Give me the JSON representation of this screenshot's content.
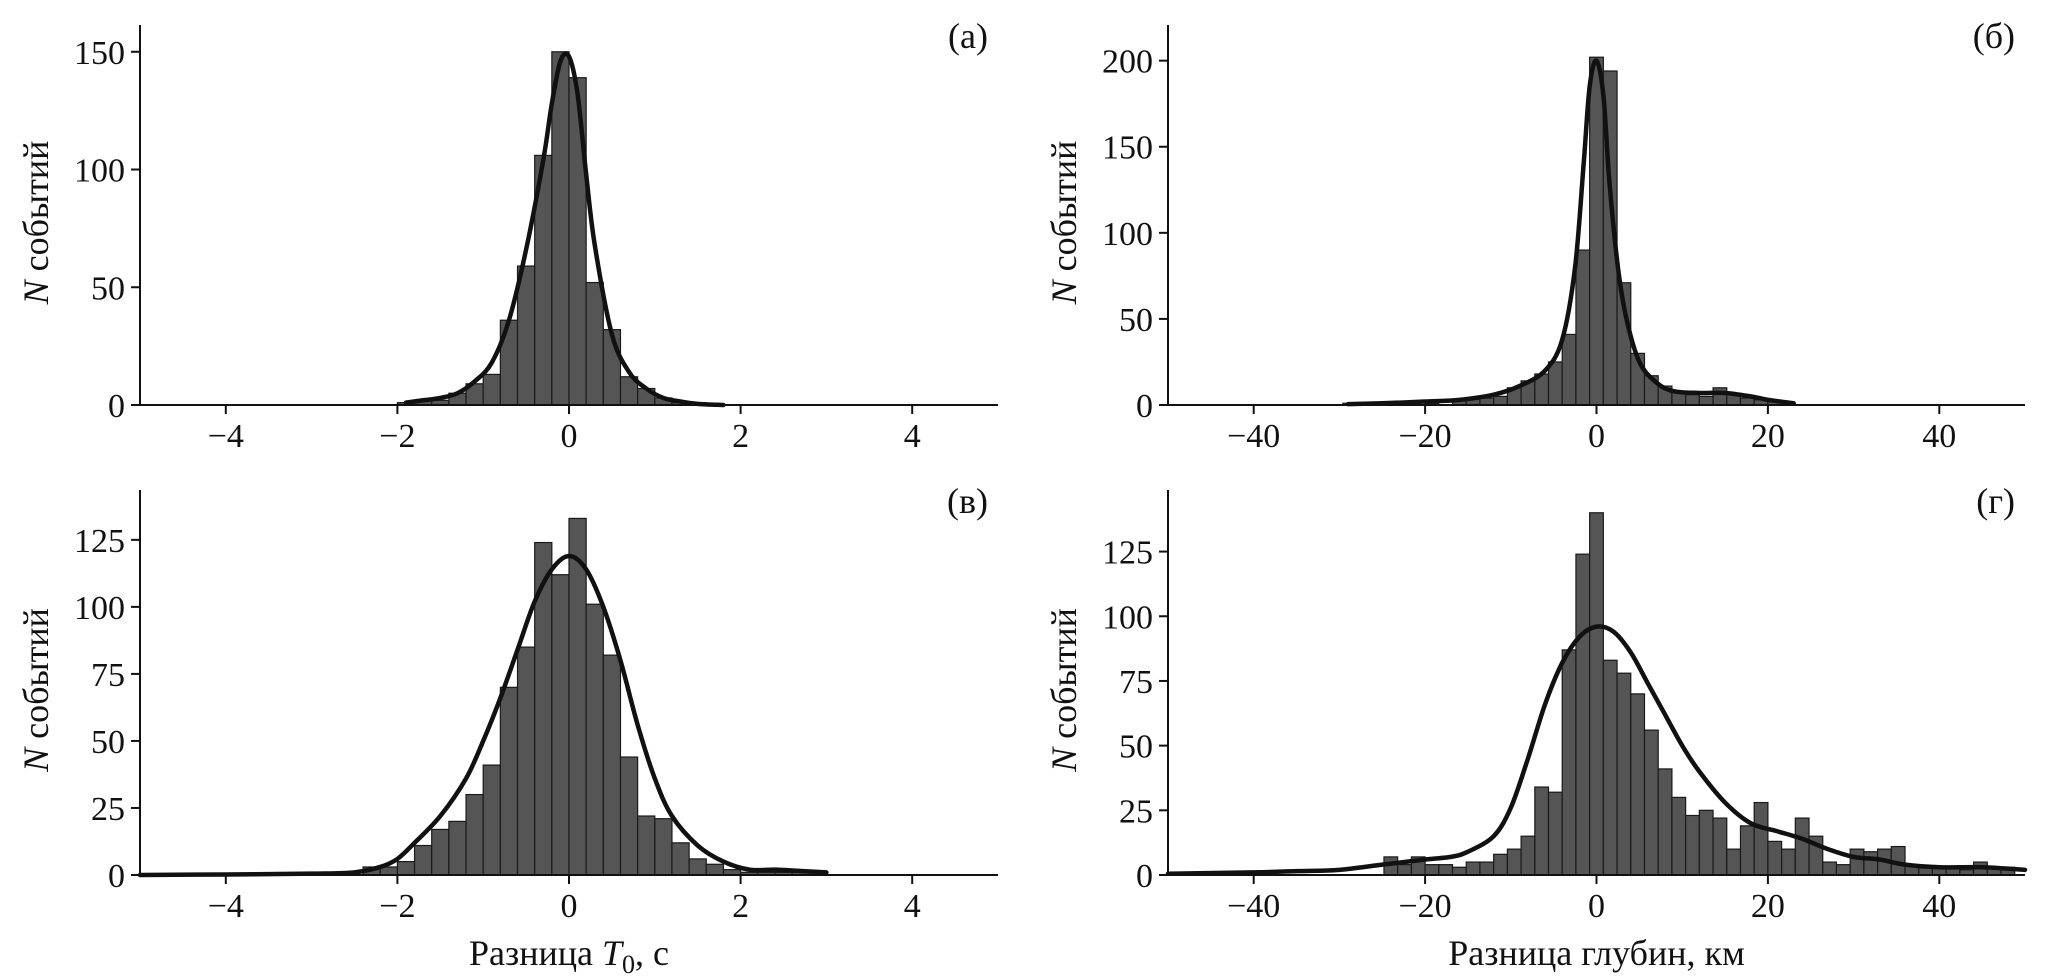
{
  "chart_data": [
    {
      "type": "bar",
      "panel_label": "(а)",
      "xlabel": "",
      "ylabel_prefix": "N",
      "ylabel": "событий",
      "xlim": [
        -5,
        5
      ],
      "ylim": [
        0,
        155
      ],
      "xticks": [
        -4,
        -2,
        0,
        2,
        4
      ],
      "xtick_labels": [
        "−4",
        "−2",
        "0",
        "2",
        "4"
      ],
      "yticks": [
        0,
        50,
        100,
        150
      ],
      "ytick_labels": [
        "0",
        "50",
        "100",
        "150"
      ],
      "bin_width": 0.2,
      "bins": [
        {
          "x": -1.9,
          "value": 1
        },
        {
          "x": -1.7,
          "value": 2
        },
        {
          "x": -1.5,
          "value": 2
        },
        {
          "x": -1.3,
          "value": 5
        },
        {
          "x": -1.1,
          "value": 9
        },
        {
          "x": -0.9,
          "value": 13
        },
        {
          "x": -0.7,
          "value": 36
        },
        {
          "x": -0.5,
          "value": 59
        },
        {
          "x": -0.3,
          "value": 106
        },
        {
          "x": -0.1,
          "value": 150
        },
        {
          "x": 0.1,
          "value": 139
        },
        {
          "x": 0.3,
          "value": 52
        },
        {
          "x": 0.5,
          "value": 32
        },
        {
          "x": 0.7,
          "value": 12
        },
        {
          "x": 0.9,
          "value": 7
        },
        {
          "x": 1.1,
          "value": 3
        },
        {
          "x": 1.3,
          "value": 1
        },
        {
          "x": 1.5,
          "value": 1
        }
      ],
      "kde_x": [
        -1.9,
        -1.7,
        -1.5,
        -1.3,
        -1.1,
        -0.9,
        -0.7,
        -0.5,
        -0.3,
        -0.2,
        -0.1,
        0.0,
        0.1,
        0.2,
        0.3,
        0.5,
        0.7,
        0.9,
        1.1,
        1.3,
        1.5,
        1.8
      ],
      "kde_y": [
        1,
        2,
        3,
        5,
        10,
        18,
        36,
        66,
        104,
        128,
        146,
        148,
        132,
        98,
        68,
        30,
        14,
        7,
        3,
        1.5,
        0.5,
        0
      ]
    },
    {
      "type": "bar",
      "panel_label": "(б)",
      "xlabel": "",
      "ylabel_prefix": "N",
      "ylabel": "событий",
      "xlim": [
        -50,
        50
      ],
      "ylim": [
        0,
        212
      ],
      "xticks": [
        -40,
        -20,
        0,
        20,
        40
      ],
      "xtick_labels": [
        "−40",
        "−20",
        "0",
        "20",
        "40"
      ],
      "yticks": [
        0,
        50,
        100,
        150,
        200
      ],
      "ytick_labels": [
        "0",
        "50",
        "100",
        "150",
        "200"
      ],
      "bin_width": 1.6,
      "bins": [
        {
          "x": -28.8,
          "value": 1
        },
        {
          "x": -24,
          "value": 1
        },
        {
          "x": -19.2,
          "value": 1
        },
        {
          "x": -16,
          "value": 3
        },
        {
          "x": -14.4,
          "value": 4
        },
        {
          "x": -12.8,
          "value": 4
        },
        {
          "x": -11.2,
          "value": 5
        },
        {
          "x": -9.6,
          "value": 10
        },
        {
          "x": -8,
          "value": 14
        },
        {
          "x": -6.4,
          "value": 18
        },
        {
          "x": -4.8,
          "value": 25
        },
        {
          "x": -3.2,
          "value": 41
        },
        {
          "x": -1.6,
          "value": 90
        },
        {
          "x": 0,
          "value": 202
        },
        {
          "x": 1.6,
          "value": 194
        },
        {
          "x": 3.2,
          "value": 71
        },
        {
          "x": 4.8,
          "value": 30
        },
        {
          "x": 6.4,
          "value": 17
        },
        {
          "x": 8,
          "value": 11
        },
        {
          "x": 9.6,
          "value": 8
        },
        {
          "x": 11.2,
          "value": 6
        },
        {
          "x": 12.8,
          "value": 5
        },
        {
          "x": 14.4,
          "value": 10
        },
        {
          "x": 16,
          "value": 6
        },
        {
          "x": 17.6,
          "value": 4
        },
        {
          "x": 19.2,
          "value": 3
        },
        {
          "x": 20.8,
          "value": 2
        },
        {
          "x": 22.4,
          "value": 1
        }
      ],
      "kde_x": [
        -29,
        -25,
        -20,
        -16,
        -12,
        -9,
        -6,
        -4,
        -2.5,
        -1.5,
        -0.8,
        0,
        0.8,
        1.5,
        2.5,
        3.5,
        5,
        7,
        9,
        12,
        15,
        18,
        20,
        23
      ],
      "kde_y": [
        0.5,
        1,
        2,
        3,
        6,
        11,
        20,
        38,
        80,
        140,
        185,
        200,
        180,
        130,
        80,
        50,
        25,
        13,
        8,
        7,
        7,
        5,
        3,
        1
      ]
    },
    {
      "type": "bar",
      "panel_label": "(в)",
      "xlabel": "Разница ",
      "xlabel_var": "T",
      "xlabel_sub": "0",
      "xlabel_suffix": ", с",
      "ylabel_prefix": "N",
      "ylabel": "событий",
      "xlim": [
        -5,
        5
      ],
      "ylim": [
        0,
        138
      ],
      "xticks": [
        -4,
        -2,
        0,
        2,
        4
      ],
      "xtick_labels": [
        "−4",
        "−2",
        "0",
        "2",
        "4"
      ],
      "yticks": [
        0,
        25,
        50,
        75,
        100,
        125
      ],
      "ytick_labels": [
        "0",
        "25",
        "50",
        "75",
        "100",
        "125"
      ],
      "bin_width": 0.2,
      "bins": [
        {
          "x": -2.3,
          "value": 3
        },
        {
          "x": -2.1,
          "value": 3
        },
        {
          "x": -1.9,
          "value": 5
        },
        {
          "x": -1.7,
          "value": 11
        },
        {
          "x": -1.5,
          "value": 17
        },
        {
          "x": -1.3,
          "value": 20
        },
        {
          "x": -1.1,
          "value": 30
        },
        {
          "x": -0.9,
          "value": 41
        },
        {
          "x": -0.7,
          "value": 70
        },
        {
          "x": -0.5,
          "value": 85
        },
        {
          "x": -0.3,
          "value": 124
        },
        {
          "x": -0.1,
          "value": 112
        },
        {
          "x": 0.1,
          "value": 133
        },
        {
          "x": 0.3,
          "value": 101
        },
        {
          "x": 0.5,
          "value": 82
        },
        {
          "x": 0.7,
          "value": 44
        },
        {
          "x": 0.9,
          "value": 22
        },
        {
          "x": 1.1,
          "value": 21
        },
        {
          "x": 1.3,
          "value": 12
        },
        {
          "x": 1.5,
          "value": 6
        },
        {
          "x": 1.7,
          "value": 4
        },
        {
          "x": 1.9,
          "value": 2
        },
        {
          "x": 2.1,
          "value": 1
        },
        {
          "x": 2.3,
          "value": 1
        },
        {
          "x": 2.5,
          "value": 1
        },
        {
          "x": 2.7,
          "value": 1
        },
        {
          "x": 2.9,
          "value": 1
        }
      ],
      "kde_x": [
        -5,
        -4,
        -3,
        -2.5,
        -2.2,
        -2.0,
        -1.8,
        -1.5,
        -1.2,
        -1.0,
        -0.8,
        -0.6,
        -0.4,
        -0.2,
        0,
        0.2,
        0.4,
        0.6,
        0.8,
        1.0,
        1.2,
        1.5,
        1.8,
        2.1,
        2.4,
        2.7,
        3.0
      ],
      "kde_y": [
        0,
        0.2,
        0.5,
        1,
        3,
        6,
        12,
        22,
        36,
        50,
        66,
        84,
        102,
        114,
        119,
        114,
        100,
        80,
        56,
        36,
        22,
        11,
        5,
        2,
        2,
        1.5,
        1
      ]
    },
    {
      "type": "bar",
      "panel_label": "(г)",
      "xlabel": "Разница глубин, км",
      "ylabel_prefix": "N",
      "ylabel": "событий",
      "xlim": [
        -50,
        50
      ],
      "ylim": [
        0,
        143
      ],
      "xticks": [
        -40,
        -20,
        0,
        20,
        40
      ],
      "xtick_labels": [
        "−40",
        "−20",
        "0",
        "20",
        "40"
      ],
      "yticks": [
        0,
        25,
        50,
        75,
        100,
        125
      ],
      "ytick_labels": [
        "0",
        "25",
        "50",
        "75",
        "100",
        "125"
      ],
      "bin_width": 1.6,
      "bins": [
        {
          "x": -24,
          "value": 7
        },
        {
          "x": -22.4,
          "value": 4
        },
        {
          "x": -20.8,
          "value": 7
        },
        {
          "x": -19.2,
          "value": 4
        },
        {
          "x": -17.6,
          "value": 4
        },
        {
          "x": -16,
          "value": 3
        },
        {
          "x": -14.4,
          "value": 5
        },
        {
          "x": -12.8,
          "value": 5
        },
        {
          "x": -11.2,
          "value": 8
        },
        {
          "x": -9.6,
          "value": 10
        },
        {
          "x": -8,
          "value": 15
        },
        {
          "x": -6.4,
          "value": 34
        },
        {
          "x": -4.8,
          "value": 32
        },
        {
          "x": -3.2,
          "value": 87
        },
        {
          "x": -1.6,
          "value": 124
        },
        {
          "x": 0,
          "value": 140
        },
        {
          "x": 1.6,
          "value": 83
        },
        {
          "x": 3.2,
          "value": 78
        },
        {
          "x": 4.8,
          "value": 70
        },
        {
          "x": 6.4,
          "value": 56
        },
        {
          "x": 8,
          "value": 41
        },
        {
          "x": 9.6,
          "value": 30
        },
        {
          "x": 11.2,
          "value": 23
        },
        {
          "x": 12.8,
          "value": 25
        },
        {
          "x": 14.4,
          "value": 22
        },
        {
          "x": 16,
          "value": 10
        },
        {
          "x": 17.6,
          "value": 19
        },
        {
          "x": 19.2,
          "value": 28
        },
        {
          "x": 20.8,
          "value": 13
        },
        {
          "x": 22.4,
          "value": 10
        },
        {
          "x": 24,
          "value": 22
        },
        {
          "x": 25.6,
          "value": 15
        },
        {
          "x": 27.2,
          "value": 5
        },
        {
          "x": 28.8,
          "value": 4
        },
        {
          "x": 30.4,
          "value": 10
        },
        {
          "x": 32,
          "value": 9
        },
        {
          "x": 33.6,
          "value": 10
        },
        {
          "x": 35.2,
          "value": 11
        },
        {
          "x": 36.8,
          "value": 4
        },
        {
          "x": 38.4,
          "value": 3
        },
        {
          "x": 40,
          "value": 3
        },
        {
          "x": 41.6,
          "value": 3
        },
        {
          "x": 43.2,
          "value": 2
        },
        {
          "x": 44.8,
          "value": 5
        },
        {
          "x": 46.4,
          "value": 3
        },
        {
          "x": 48,
          "value": 3
        }
      ],
      "kde_x": [
        -50,
        -40,
        -35,
        -30,
        -25,
        -20,
        -17,
        -15,
        -12,
        -10,
        -8,
        -6,
        -4,
        -2,
        0,
        2,
        4,
        6,
        8,
        10,
        12,
        15,
        18,
        21,
        24,
        27,
        30,
        33,
        36,
        40,
        45,
        50
      ],
      "kde_y": [
        0.5,
        1,
        1.5,
        2,
        4,
        6,
        7,
        9,
        15,
        26,
        45,
        66,
        82,
        92,
        96,
        94,
        86,
        74,
        62,
        50,
        40,
        28,
        20,
        17,
        14,
        10,
        7,
        6,
        4,
        3,
        3,
        2
      ]
    }
  ]
}
